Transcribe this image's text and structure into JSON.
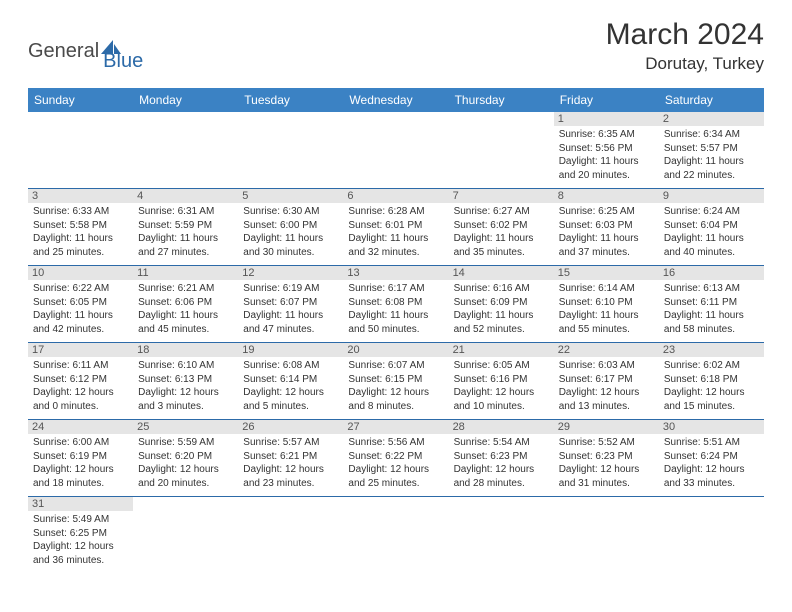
{
  "brand": {
    "part1": "General",
    "part2": "Blue"
  },
  "title": "March 2024",
  "location": "Dorutay, Turkey",
  "colors": {
    "header_bg": "#3b82c4",
    "header_text": "#ffffff",
    "border": "#2c6aa8",
    "daynum_bg": "#e5e5e5",
    "text": "#333333",
    "brand_accent": "#2c6aa8"
  },
  "daynames": [
    "Sunday",
    "Monday",
    "Tuesday",
    "Wednesday",
    "Thursday",
    "Friday",
    "Saturday"
  ],
  "weeks": [
    [
      null,
      null,
      null,
      null,
      null,
      {
        "d": "1",
        "sr": "Sunrise: 6:35 AM",
        "ss": "Sunset: 5:56 PM",
        "dl1": "Daylight: 11 hours",
        "dl2": "and 20 minutes."
      },
      {
        "d": "2",
        "sr": "Sunrise: 6:34 AM",
        "ss": "Sunset: 5:57 PM",
        "dl1": "Daylight: 11 hours",
        "dl2": "and 22 minutes."
      }
    ],
    [
      {
        "d": "3",
        "sr": "Sunrise: 6:33 AM",
        "ss": "Sunset: 5:58 PM",
        "dl1": "Daylight: 11 hours",
        "dl2": "and 25 minutes."
      },
      {
        "d": "4",
        "sr": "Sunrise: 6:31 AM",
        "ss": "Sunset: 5:59 PM",
        "dl1": "Daylight: 11 hours",
        "dl2": "and 27 minutes."
      },
      {
        "d": "5",
        "sr": "Sunrise: 6:30 AM",
        "ss": "Sunset: 6:00 PM",
        "dl1": "Daylight: 11 hours",
        "dl2": "and 30 minutes."
      },
      {
        "d": "6",
        "sr": "Sunrise: 6:28 AM",
        "ss": "Sunset: 6:01 PM",
        "dl1": "Daylight: 11 hours",
        "dl2": "and 32 minutes."
      },
      {
        "d": "7",
        "sr": "Sunrise: 6:27 AM",
        "ss": "Sunset: 6:02 PM",
        "dl1": "Daylight: 11 hours",
        "dl2": "and 35 minutes."
      },
      {
        "d": "8",
        "sr": "Sunrise: 6:25 AM",
        "ss": "Sunset: 6:03 PM",
        "dl1": "Daylight: 11 hours",
        "dl2": "and 37 minutes."
      },
      {
        "d": "9",
        "sr": "Sunrise: 6:24 AM",
        "ss": "Sunset: 6:04 PM",
        "dl1": "Daylight: 11 hours",
        "dl2": "and 40 minutes."
      }
    ],
    [
      {
        "d": "10",
        "sr": "Sunrise: 6:22 AM",
        "ss": "Sunset: 6:05 PM",
        "dl1": "Daylight: 11 hours",
        "dl2": "and 42 minutes."
      },
      {
        "d": "11",
        "sr": "Sunrise: 6:21 AM",
        "ss": "Sunset: 6:06 PM",
        "dl1": "Daylight: 11 hours",
        "dl2": "and 45 minutes."
      },
      {
        "d": "12",
        "sr": "Sunrise: 6:19 AM",
        "ss": "Sunset: 6:07 PM",
        "dl1": "Daylight: 11 hours",
        "dl2": "and 47 minutes."
      },
      {
        "d": "13",
        "sr": "Sunrise: 6:17 AM",
        "ss": "Sunset: 6:08 PM",
        "dl1": "Daylight: 11 hours",
        "dl2": "and 50 minutes."
      },
      {
        "d": "14",
        "sr": "Sunrise: 6:16 AM",
        "ss": "Sunset: 6:09 PM",
        "dl1": "Daylight: 11 hours",
        "dl2": "and 52 minutes."
      },
      {
        "d": "15",
        "sr": "Sunrise: 6:14 AM",
        "ss": "Sunset: 6:10 PM",
        "dl1": "Daylight: 11 hours",
        "dl2": "and 55 minutes."
      },
      {
        "d": "16",
        "sr": "Sunrise: 6:13 AM",
        "ss": "Sunset: 6:11 PM",
        "dl1": "Daylight: 11 hours",
        "dl2": "and 58 minutes."
      }
    ],
    [
      {
        "d": "17",
        "sr": "Sunrise: 6:11 AM",
        "ss": "Sunset: 6:12 PM",
        "dl1": "Daylight: 12 hours",
        "dl2": "and 0 minutes."
      },
      {
        "d": "18",
        "sr": "Sunrise: 6:10 AM",
        "ss": "Sunset: 6:13 PM",
        "dl1": "Daylight: 12 hours",
        "dl2": "and 3 minutes."
      },
      {
        "d": "19",
        "sr": "Sunrise: 6:08 AM",
        "ss": "Sunset: 6:14 PM",
        "dl1": "Daylight: 12 hours",
        "dl2": "and 5 minutes."
      },
      {
        "d": "20",
        "sr": "Sunrise: 6:07 AM",
        "ss": "Sunset: 6:15 PM",
        "dl1": "Daylight: 12 hours",
        "dl2": "and 8 minutes."
      },
      {
        "d": "21",
        "sr": "Sunrise: 6:05 AM",
        "ss": "Sunset: 6:16 PM",
        "dl1": "Daylight: 12 hours",
        "dl2": "and 10 minutes."
      },
      {
        "d": "22",
        "sr": "Sunrise: 6:03 AM",
        "ss": "Sunset: 6:17 PM",
        "dl1": "Daylight: 12 hours",
        "dl2": "and 13 minutes."
      },
      {
        "d": "23",
        "sr": "Sunrise: 6:02 AM",
        "ss": "Sunset: 6:18 PM",
        "dl1": "Daylight: 12 hours",
        "dl2": "and 15 minutes."
      }
    ],
    [
      {
        "d": "24",
        "sr": "Sunrise: 6:00 AM",
        "ss": "Sunset: 6:19 PM",
        "dl1": "Daylight: 12 hours",
        "dl2": "and 18 minutes."
      },
      {
        "d": "25",
        "sr": "Sunrise: 5:59 AM",
        "ss": "Sunset: 6:20 PM",
        "dl1": "Daylight: 12 hours",
        "dl2": "and 20 minutes."
      },
      {
        "d": "26",
        "sr": "Sunrise: 5:57 AM",
        "ss": "Sunset: 6:21 PM",
        "dl1": "Daylight: 12 hours",
        "dl2": "and 23 minutes."
      },
      {
        "d": "27",
        "sr": "Sunrise: 5:56 AM",
        "ss": "Sunset: 6:22 PM",
        "dl1": "Daylight: 12 hours",
        "dl2": "and 25 minutes."
      },
      {
        "d": "28",
        "sr": "Sunrise: 5:54 AM",
        "ss": "Sunset: 6:23 PM",
        "dl1": "Daylight: 12 hours",
        "dl2": "and 28 minutes."
      },
      {
        "d": "29",
        "sr": "Sunrise: 5:52 AM",
        "ss": "Sunset: 6:23 PM",
        "dl1": "Daylight: 12 hours",
        "dl2": "and 31 minutes."
      },
      {
        "d": "30",
        "sr": "Sunrise: 5:51 AM",
        "ss": "Sunset: 6:24 PM",
        "dl1": "Daylight: 12 hours",
        "dl2": "and 33 minutes."
      }
    ],
    [
      {
        "d": "31",
        "sr": "Sunrise: 5:49 AM",
        "ss": "Sunset: 6:25 PM",
        "dl1": "Daylight: 12 hours",
        "dl2": "and 36 minutes."
      },
      null,
      null,
      null,
      null,
      null,
      null
    ]
  ]
}
